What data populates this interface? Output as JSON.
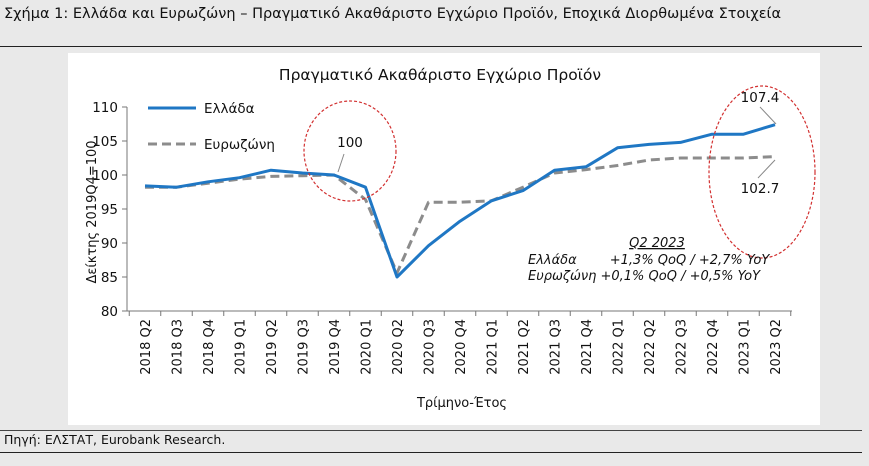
{
  "caption": "Σχήμα 1: Ελλάδα και Ευρωζώνη – Πραγματικό Ακαθάριστο Εγχώριο Προϊόν, Εποχικά Διορθωμένα Στοιχεία",
  "source": "Πηγή: ΕΛΣΤΑΤ, Eurobank Research.",
  "chart_data": {
    "type": "line",
    "title": "Πραγματικό Ακαθάριστο Εγχώριο Προϊόν",
    "xlabel": "Τρίμηνο-Έτος",
    "ylabel": "Δείκτης 2019Q4=100",
    "ylim": [
      80,
      110
    ],
    "yticks": [
      80,
      85,
      90,
      95,
      100,
      105,
      110
    ],
    "categories": [
      "2018 Q2",
      "2018 Q3",
      "2018 Q4",
      "2019 Q1",
      "2019 Q2",
      "2019 Q3",
      "2019 Q4",
      "2020 Q1",
      "2020 Q2",
      "2020 Q3",
      "2020 Q4",
      "2021 Q1",
      "2021 Q2",
      "2021 Q3",
      "2021 Q4",
      "2022 Q1",
      "2022 Q2",
      "2022 Q3",
      "2022 Q4",
      "2023 Q1",
      "2023 Q2"
    ],
    "series": [
      {
        "name": "Ελλάδα",
        "color": "#1f77c4",
        "dash": "solid",
        "values": [
          98.4,
          98.2,
          99.0,
          99.6,
          100.7,
          100.3,
          100.0,
          98.2,
          85.0,
          89.6,
          93.2,
          96.2,
          97.7,
          100.7,
          101.2,
          104.0,
          104.5,
          104.8,
          106.0,
          106.0,
          107.4
        ]
      },
      {
        "name": "Ευρωζώνη",
        "color": "#8c8c8c",
        "dash": "dashed",
        "values": [
          98.2,
          98.2,
          98.8,
          99.4,
          99.8,
          99.9,
          100.0,
          96.4,
          85.6,
          96.0,
          96.0,
          96.2,
          98.2,
          100.3,
          100.8,
          101.4,
          102.2,
          102.5,
          102.5,
          102.5,
          102.7
        ]
      }
    ],
    "annotations": {
      "label_100": "100",
      "label_greece_last": "107.4",
      "label_euro_last": "102.7",
      "box_title": "Q2 2023",
      "box_line1": "Ελλάδα        +1,3% QoQ / +2,7% YoY",
      "box_line2": "Ευρωζώνη +0,1% QoQ / +0,5% YoY"
    },
    "grid": false,
    "legend_position": "top-left"
  }
}
